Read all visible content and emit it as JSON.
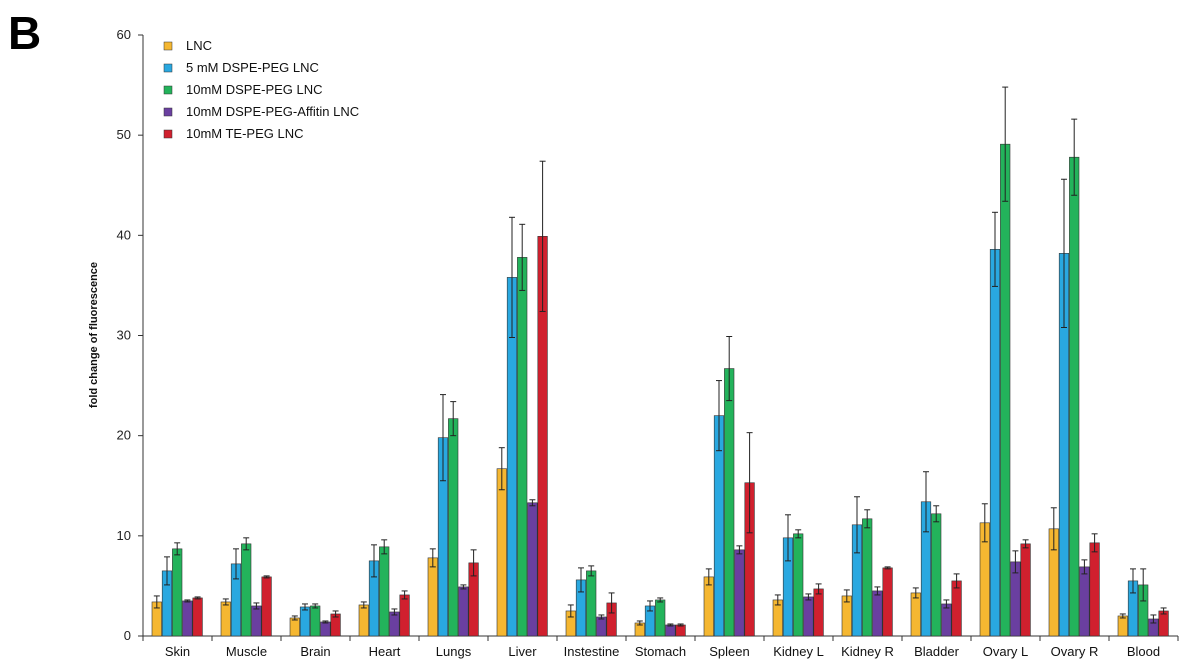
{
  "panel_label": "B",
  "chart_data": {
    "type": "bar",
    "title": "",
    "xlabel": "",
    "ylabel": "fold change of fluorescence",
    "ylim": [
      0,
      60
    ],
    "yticks": [
      0,
      10,
      20,
      30,
      40,
      50,
      60
    ],
    "grid": false,
    "legend_position": "top-left",
    "error_bars": true,
    "categories": [
      "Skin",
      "Muscle",
      "Brain",
      "Heart",
      "Lungs",
      "Liver",
      "Instestine",
      "Stomach",
      "Spleen",
      "Kidney L",
      "Kidney R",
      "Bladder",
      "Ovary L",
      "Ovary R",
      "Blood"
    ],
    "series": [
      {
        "name": "LNC",
        "color": "#f5b731",
        "values": [
          3.4,
          3.4,
          1.8,
          3.1,
          7.8,
          16.7,
          2.5,
          1.3,
          5.9,
          3.6,
          4.0,
          4.3,
          11.3,
          10.7,
          2.0
        ],
        "errors": [
          0.6,
          0.3,
          0.2,
          0.3,
          0.9,
          2.1,
          0.6,
          0.2,
          0.8,
          0.5,
          0.6,
          0.5,
          1.9,
          2.1,
          0.2
        ]
      },
      {
        "name": "5 mM DSPE-PEG LNC",
        "color": "#29a8e0",
        "values": [
          6.5,
          7.2,
          2.9,
          7.5,
          19.8,
          35.8,
          5.6,
          3.0,
          22.0,
          9.8,
          11.1,
          13.4,
          38.6,
          38.2,
          5.5
        ],
        "errors": [
          1.4,
          1.5,
          0.3,
          1.6,
          4.3,
          6.0,
          1.2,
          0.5,
          3.5,
          2.3,
          2.8,
          3.0,
          3.7,
          7.4,
          1.2
        ]
      },
      {
        "name": "10mM DSPE-PEG LNC",
        "color": "#23b35b",
        "values": [
          8.7,
          9.2,
          3.0,
          8.9,
          21.7,
          37.8,
          6.5,
          3.6,
          26.7,
          10.2,
          11.7,
          12.2,
          49.1,
          47.8,
          5.1
        ],
        "errors": [
          0.6,
          0.6,
          0.2,
          0.7,
          1.7,
          3.3,
          0.5,
          0.2,
          3.2,
          0.4,
          0.9,
          0.8,
          5.7,
          3.8,
          1.6
        ]
      },
      {
        "name": "10mM DSPE-PEG-Affitin LNC",
        "color": "#6a3fa0",
        "values": [
          3.5,
          3.0,
          1.4,
          2.4,
          4.9,
          13.3,
          1.9,
          1.1,
          8.6,
          3.9,
          4.5,
          3.2,
          7.4,
          6.9,
          1.7
        ],
        "errors": [
          0.1,
          0.3,
          0.1,
          0.3,
          0.2,
          0.3,
          0.2,
          0.1,
          0.4,
          0.3,
          0.4,
          0.4,
          1.1,
          0.7,
          0.4
        ]
      },
      {
        "name": "10mM TE-PEG LNC",
        "color": "#d0202e",
        "values": [
          3.8,
          5.9,
          2.2,
          4.1,
          7.3,
          39.9,
          3.3,
          1.1,
          15.3,
          4.7,
          6.8,
          5.5,
          9.2,
          9.3,
          2.5
        ],
        "errors": [
          0.1,
          0.1,
          0.3,
          0.4,
          1.3,
          7.5,
          1.0,
          0.1,
          5.0,
          0.5,
          0.1,
          0.7,
          0.4,
          0.9,
          0.3
        ]
      }
    ]
  }
}
